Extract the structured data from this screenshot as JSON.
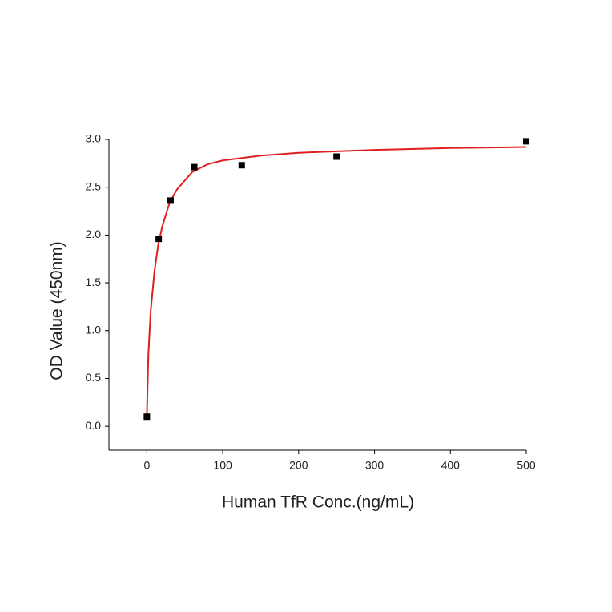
{
  "chart_data": {
    "type": "scatter",
    "x_label": "Human TfR Conc.(ng/mL)",
    "y_label": "OD Value (450nm)",
    "xlim": [
      -50,
      500
    ],
    "ylim": [
      -0.25,
      3.0
    ],
    "xticks": [
      0,
      100,
      200,
      300,
      400,
      500
    ],
    "yticks": [
      {
        "value": 0,
        "label": "0.0"
      },
      {
        "value": 0.5,
        "label": "0.5"
      },
      {
        "value": 1,
        "label": "1.0"
      },
      {
        "value": 1.5,
        "label": "1.5"
      },
      {
        "value": 2,
        "label": "2.0"
      },
      {
        "value": 2.5,
        "label": "2.5"
      },
      {
        "value": 3,
        "label": "3.0"
      }
    ],
    "series": [
      {
        "kind": "points",
        "color": "#000000",
        "x": [
          0,
          15.6,
          31.25,
          62.5,
          125,
          250,
          500
        ],
        "values": [
          0.1,
          1.96,
          2.36,
          2.71,
          2.73,
          2.82,
          2.98
        ]
      },
      {
        "kind": "fit",
        "color": "#e02020",
        "x": [
          0,
          2,
          5,
          10,
          15,
          20,
          30,
          40,
          60,
          80,
          100,
          150,
          200,
          300,
          400,
          500
        ],
        "values": [
          0.1,
          0.75,
          1.2,
          1.62,
          1.9,
          2.08,
          2.34,
          2.48,
          2.66,
          2.74,
          2.78,
          2.83,
          2.86,
          2.89,
          2.91,
          2.92
        ]
      }
    ]
  }
}
